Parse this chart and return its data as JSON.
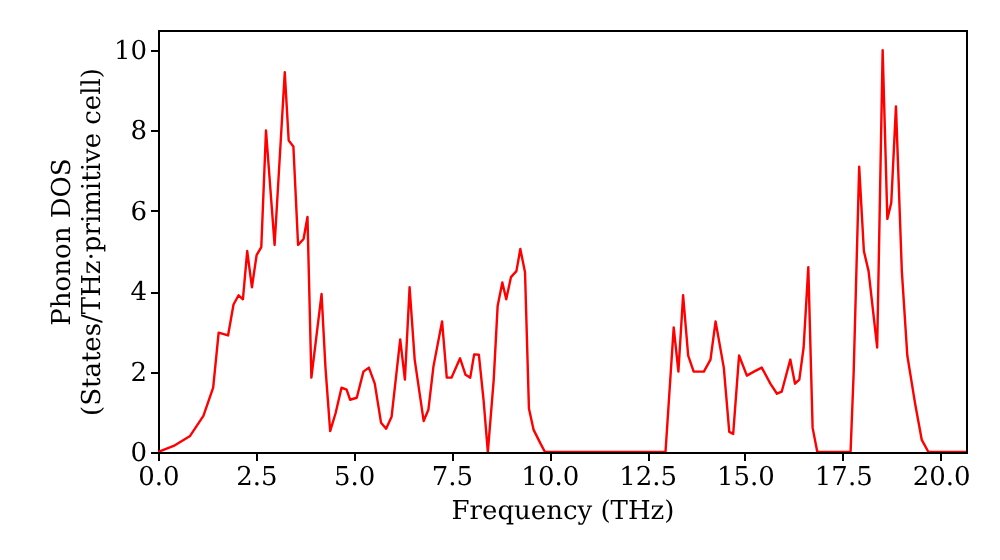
{
  "chart_data": {
    "type": "line",
    "xlabel": "Frequency (THz)",
    "ylabel": "Phonon DOS\n(States/THz·primitive cell)",
    "xlim": [
      0,
      20.65
    ],
    "ylim": [
      0,
      10.5
    ],
    "xticks": [
      {
        "value": 0,
        "label": "0.0"
      },
      {
        "value": 2.5,
        "label": "2.5"
      },
      {
        "value": 5,
        "label": "5.0"
      },
      {
        "value": 7.5,
        "label": "7.5"
      },
      {
        "value": 10,
        "label": "10.0"
      },
      {
        "value": 12.5,
        "label": "12.5"
      },
      {
        "value": 15,
        "label": "15.0"
      },
      {
        "value": 17.5,
        "label": "17.5"
      },
      {
        "value": 20,
        "label": "20.0"
      }
    ],
    "yticks": [
      0,
      2,
      4,
      6,
      8,
      10
    ],
    "grid": false,
    "marker": "none",
    "line_style": "solid",
    "series": [
      {
        "color": "#ff0000",
        "x": [
          0,
          0.4,
          0.82,
          1.16,
          1.41,
          1.55,
          1.79,
          1.93,
          2.06,
          2.17,
          2.28,
          2.4,
          2.52,
          2.64,
          2.76,
          2.98,
          3.24,
          3.34,
          3.46,
          3.58,
          3.72,
          3.82,
          3.92,
          4.06,
          4.18,
          4.28,
          4.4,
          4.54,
          4.69,
          4.82,
          4.91,
          5.08,
          5.25,
          5.39,
          5.54,
          5.7,
          5.83,
          5.97,
          6.19,
          6.31,
          6.43,
          6.56,
          6.79,
          6.91,
          7.04,
          7.26,
          7.38,
          7.5,
          7.72,
          7.86,
          7.98,
          8.08,
          8.2,
          8.32,
          8.43,
          8.58,
          8.68,
          8.8,
          8.9,
          9.02,
          9.16,
          9.26,
          9.38,
          9.48,
          9.6,
          9.77,
          9.89,
          12.97,
          13.18,
          13.3,
          13.42,
          13.55,
          13.69,
          13.95,
          14.12,
          14.25,
          14.46,
          14.6,
          14.7,
          14.85,
          15.05,
          15.23,
          15.43,
          15.65,
          15.82,
          15.94,
          16.16,
          16.28,
          16.39,
          16.5,
          16.62,
          16.73,
          16.85,
          17.7,
          17.78,
          17.92,
          18.04,
          18.16,
          18.38,
          18.52,
          18.64,
          18.74,
          18.86,
          19.01,
          19.15,
          19.35,
          19.52,
          19.69,
          20.65
        ],
        "values": [
          0,
          0.15,
          0.4,
          0.9,
          1.6,
          2.97,
          2.9,
          3.67,
          3.9,
          3.8,
          5.0,
          4.1,
          4.9,
          5.1,
          8.0,
          5.15,
          9.45,
          7.75,
          7.6,
          5.15,
          5.3,
          5.85,
          1.85,
          2.97,
          3.93,
          2.1,
          0.52,
          0.97,
          1.6,
          1.55,
          1.3,
          1.35,
          2.0,
          2.1,
          1.7,
          0.73,
          0.58,
          0.88,
          2.8,
          1.8,
          4.1,
          2.3,
          0.77,
          1.05,
          2.13,
          3.25,
          1.85,
          1.85,
          2.33,
          1.92,
          1.85,
          2.43,
          2.42,
          1.3,
          0,
          1.8,
          3.63,
          4.22,
          3.8,
          4.35,
          4.5,
          5.05,
          4.47,
          1.08,
          0.55,
          0.22,
          0,
          0,
          3.1,
          2.0,
          3.9,
          2.4,
          2.0,
          2.0,
          2.3,
          3.25,
          2.1,
          0.5,
          0.45,
          2.4,
          1.9,
          2.0,
          2.1,
          1.7,
          1.45,
          1.5,
          2.3,
          1.7,
          1.8,
          2.6,
          4.6,
          0.6,
          0,
          0,
          2.0,
          7.1,
          5.0,
          4.5,
          2.6,
          10.0,
          5.8,
          6.2,
          8.6,
          4.5,
          2.4,
          1.2,
          0.3,
          0,
          0
        ]
      }
    ]
  }
}
